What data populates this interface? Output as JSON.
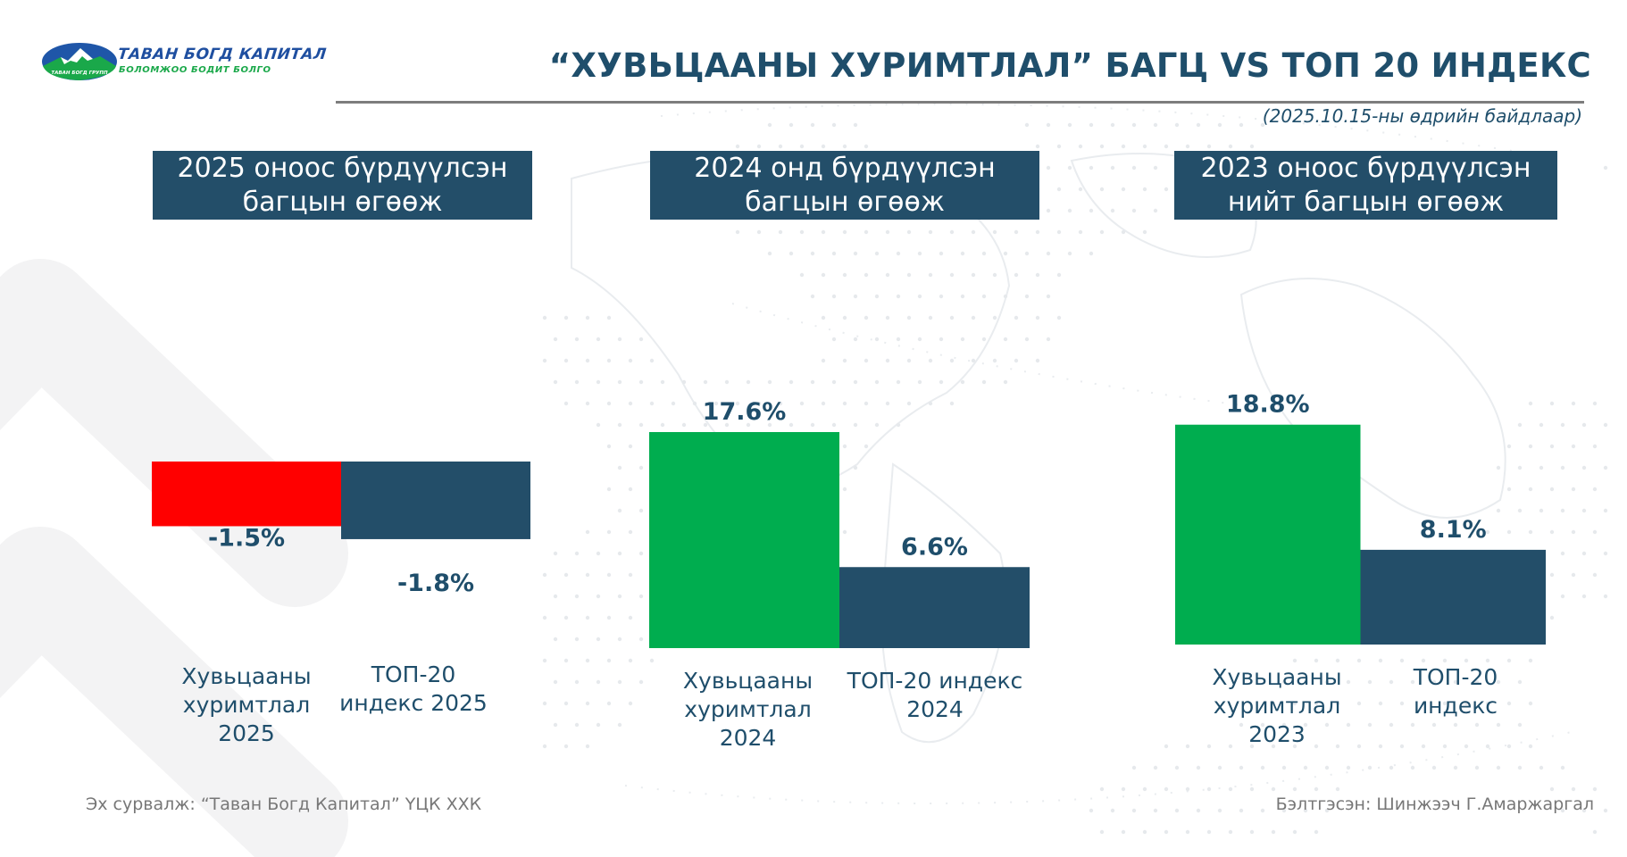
{
  "logo": {
    "name": "ТАВАН БОГД КАПИТАЛ",
    "slogan": "БОЛОМЖОО БОДИТ БОЛГО",
    "badge_text": "ТАВАН БОГД ГРУПП"
  },
  "header": {
    "title": "“ХУВЬЦААНЫ ХУРИМТЛАЛ” БАГЦ VS ТОП 20 ИНДЕКС",
    "as_of": "(2025.10.15-ны өдрийн байдлаар)"
  },
  "panels": [
    {
      "heading_line1": "2025 оноос бүрдүүлсэн",
      "heading_line2": "багцын өгөөж",
      "cat1_lines": [
        "Хувьцааны",
        "хуримтлал",
        "2025"
      ],
      "cat2_lines": [
        "ТОП-20",
        "индекс 2025"
      ]
    },
    {
      "heading_line1": "2024 онд бүрдүүлсэн",
      "heading_line2": "багцын өгөөж",
      "cat1_lines": [
        "Хувьцааны",
        "хуримтлал",
        "2024"
      ],
      "cat2_lines": [
        "ТОП-20 индекс",
        "2024"
      ]
    },
    {
      "heading_line1": "2023 оноос бүрдүүлсэн",
      "heading_line2": "нийт багцын өгөөж",
      "cat1_lines": [
        "Хувьцааны",
        "хуримтлал",
        "2023"
      ],
      "cat2_lines": [
        "ТОП-20",
        "индекс"
      ]
    }
  ],
  "chart_data": [
    {
      "type": "bar",
      "title": "2025 оноос бүрдүүлсэн багцын өгөөж",
      "categories": [
        "Хувьцааны хуримтлал 2025",
        "ТОП-20 индекс 2025"
      ],
      "values": [
        -1.5,
        -1.8
      ],
      "labels": [
        "-1.5%",
        "-1.8%"
      ],
      "colors": [
        "#ff0000",
        "#234e69"
      ],
      "unit": "%",
      "grid": false
    },
    {
      "type": "bar",
      "title": "2024 онд бүрдүүлсэн багцын өгөөж",
      "categories": [
        "Хувьцааны хуримтлал 2024",
        "ТОП-20 индекс 2024"
      ],
      "values": [
        17.6,
        6.6
      ],
      "labels": [
        "17.6%",
        "6.6%"
      ],
      "colors": [
        "#00ad4f",
        "#234e69"
      ],
      "unit": "%",
      "grid": false
    },
    {
      "type": "bar",
      "title": "2023 оноос бүрдүүлсэн нийт багцын өгөөж",
      "categories": [
        "Хувьцааны хуримтлал 2023",
        "ТОП-20 индекс"
      ],
      "values": [
        18.8,
        8.1
      ],
      "labels": [
        "18.8%",
        "8.1%"
      ],
      "colors": [
        "#00ad4f",
        "#234e69"
      ],
      "unit": "%",
      "grid": false
    }
  ],
  "footer": {
    "source": "Эх сурвалж: “Таван Богд Капитал” ҮЦК ХХК",
    "prepared_by": "Бэлтгэсэн: Шинжээч  Г.Амаржаргал"
  },
  "colors": {
    "navy": "#234e69",
    "green": "#00ad4f",
    "red": "#ff0000",
    "text": "#1f4e6b"
  }
}
